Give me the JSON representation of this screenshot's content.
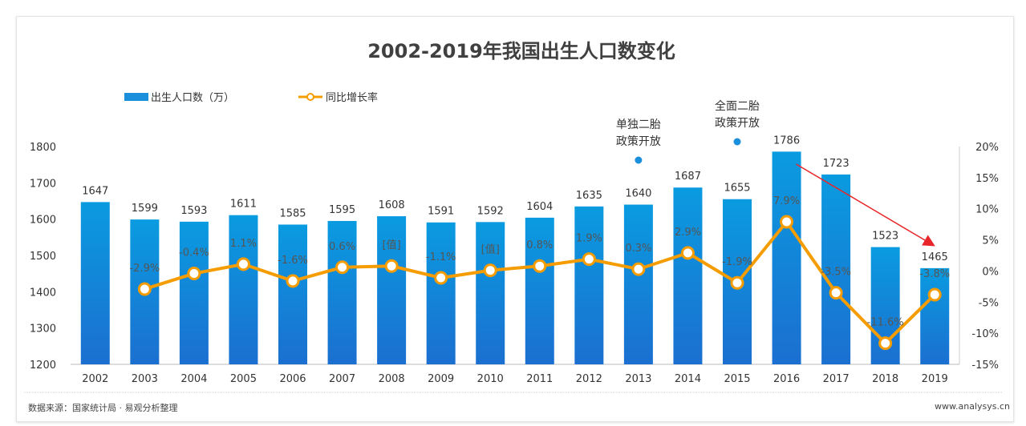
{
  "chart_data": {
    "type": "bar+line",
    "title": "2002-2019年我国出生人口数变化",
    "categories": [
      "2002",
      "2003",
      "2004",
      "2005",
      "2006",
      "2007",
      "2008",
      "2009",
      "2010",
      "2011",
      "2012",
      "2013",
      "2014",
      "2015",
      "2016",
      "2017",
      "2018",
      "2019"
    ],
    "series": [
      {
        "name": "出生人口数（万）",
        "type": "bar",
        "axis": "left",
        "color": "#1a8fdc",
        "values": [
          1647,
          1599,
          1593,
          1611,
          1585,
          1595,
          1608,
          1591,
          1592,
          1604,
          1635,
          1640,
          1687,
          1655,
          1786,
          1723,
          1523,
          1465
        ]
      },
      {
        "name": "同比增长率",
        "type": "line",
        "axis": "right",
        "color": "#f59c00",
        "values": [
          null,
          -2.9,
          -0.4,
          1.1,
          -1.6,
          0.6,
          0.8,
          -1.1,
          0.1,
          0.8,
          1.9,
          0.3,
          2.9,
          -1.9,
          7.9,
          -3.5,
          -11.6,
          -3.8
        ],
        "labels": [
          "",
          "-2.9%",
          "-0.4%",
          "1.1%",
          "-1.6%",
          "0.6%",
          "[值]",
          "-1.1%",
          "[值]",
          "0.8%",
          "1.9%",
          "0.3%",
          "2.9%",
          "-1.9%",
          "7.9%",
          "-3.5%",
          "-11.6%",
          "-3.8%"
        ]
      }
    ],
    "ylim_left": [
      1200,
      1800
    ],
    "yticks_left": [
      "1200",
      "1300",
      "1400",
      "1500",
      "1600",
      "1700",
      "1800"
    ],
    "ylim_right": [
      -15,
      20
    ],
    "yticks_right": [
      "-15%",
      "-10%",
      "-5%",
      "0%",
      "5%",
      "10%",
      "15%",
      "20%"
    ],
    "legend_position": "top-left",
    "annotations": [
      {
        "category": "2013",
        "lines": [
          "单独二胎",
          "政策开放"
        ]
      },
      {
        "category": "2015",
        "lines": [
          "全面二胎",
          "政策开放"
        ]
      }
    ],
    "trend_arrow": {
      "from": "2016",
      "to": "2019",
      "color": "#e8262a"
    }
  },
  "footer": {
    "source": "数据来源：国家统计局 · 易观分析整理",
    "site": "www.analysys.cn"
  }
}
